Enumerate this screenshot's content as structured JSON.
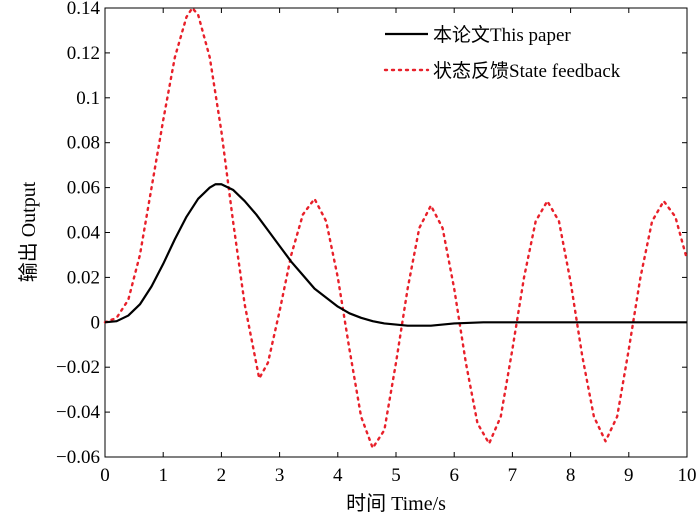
{
  "chart_data": {
    "type": "line",
    "title": "",
    "xlabel": "时间 Time/s",
    "ylabel": "输出 Output",
    "xlim": [
      0,
      10
    ],
    "ylim": [
      -0.06,
      0.14
    ],
    "xticks": [
      0,
      1,
      2,
      3,
      4,
      5,
      6,
      7,
      8,
      9,
      10
    ],
    "yticks": [
      -0.06,
      -0.04,
      -0.02,
      0,
      0.02,
      0.04,
      0.06,
      0.08,
      0.1,
      0.12,
      0.14
    ],
    "xtick_labels": [
      "0",
      "1",
      "2",
      "3",
      "4",
      "5",
      "6",
      "7",
      "8",
      "9",
      "10"
    ],
    "ytick_labels": [
      "−0.06",
      "−0.04",
      "−0.02",
      "0",
      "0.02",
      "0.04",
      "0.06",
      "0.08",
      "0.1",
      "0.12",
      "0.14"
    ],
    "grid": false,
    "legend_position": "top-right",
    "series": [
      {
        "name": "本论文This paper",
        "color": "#000000",
        "style": "solid",
        "x": [
          0,
          0.2,
          0.4,
          0.6,
          0.8,
          1.0,
          1.2,
          1.4,
          1.6,
          1.8,
          1.9,
          2.0,
          2.2,
          2.4,
          2.6,
          2.8,
          3.0,
          3.2,
          3.4,
          3.6,
          3.8,
          4.0,
          4.2,
          4.4,
          4.6,
          4.8,
          5.0,
          5.2,
          5.4,
          5.6,
          5.8,
          6.0,
          6.5,
          7.0,
          8.0,
          9.0,
          10.0
        ],
        "y": [
          0,
          0.0005,
          0.003,
          0.008,
          0.016,
          0.026,
          0.037,
          0.047,
          0.055,
          0.06,
          0.0615,
          0.0615,
          0.059,
          0.054,
          0.048,
          0.041,
          0.034,
          0.027,
          0.021,
          0.015,
          0.011,
          0.007,
          0.004,
          0.002,
          0.0005,
          -0.0005,
          -0.001,
          -0.0015,
          -0.0015,
          -0.0015,
          -0.001,
          -0.0005,
          0,
          0,
          0,
          0,
          0
        ]
      },
      {
        "name": "状态反馈State feedback",
        "color": "#e8202a",
        "style": "dotted",
        "x": [
          0,
          0.2,
          0.4,
          0.6,
          0.8,
          1.0,
          1.2,
          1.4,
          1.5,
          1.6,
          1.8,
          2.0,
          2.2,
          2.4,
          2.65,
          2.8,
          3.0,
          3.2,
          3.4,
          3.6,
          3.8,
          4.0,
          4.2,
          4.4,
          4.6,
          4.8,
          5.0,
          5.2,
          5.4,
          5.6,
          5.8,
          6.0,
          6.2,
          6.4,
          6.6,
          6.8,
          7.0,
          7.2,
          7.4,
          7.6,
          7.8,
          8.0,
          8.2,
          8.4,
          8.6,
          8.8,
          9.0,
          9.2,
          9.4,
          9.6,
          9.8,
          10.0
        ],
        "y": [
          0,
          0.002,
          0.01,
          0.03,
          0.06,
          0.09,
          0.118,
          0.136,
          0.14,
          0.137,
          0.118,
          0.085,
          0.045,
          0.008,
          -0.025,
          -0.018,
          0.005,
          0.03,
          0.048,
          0.055,
          0.045,
          0.02,
          -0.012,
          -0.042,
          -0.056,
          -0.048,
          -0.018,
          0.015,
          0.042,
          0.052,
          0.042,
          0.015,
          -0.018,
          -0.045,
          -0.054,
          -0.042,
          -0.012,
          0.02,
          0.045,
          0.054,
          0.045,
          0.018,
          -0.015,
          -0.042,
          -0.053,
          -0.042,
          -0.012,
          0.02,
          0.045,
          0.054,
          0.047,
          0.028
        ]
      }
    ]
  }
}
